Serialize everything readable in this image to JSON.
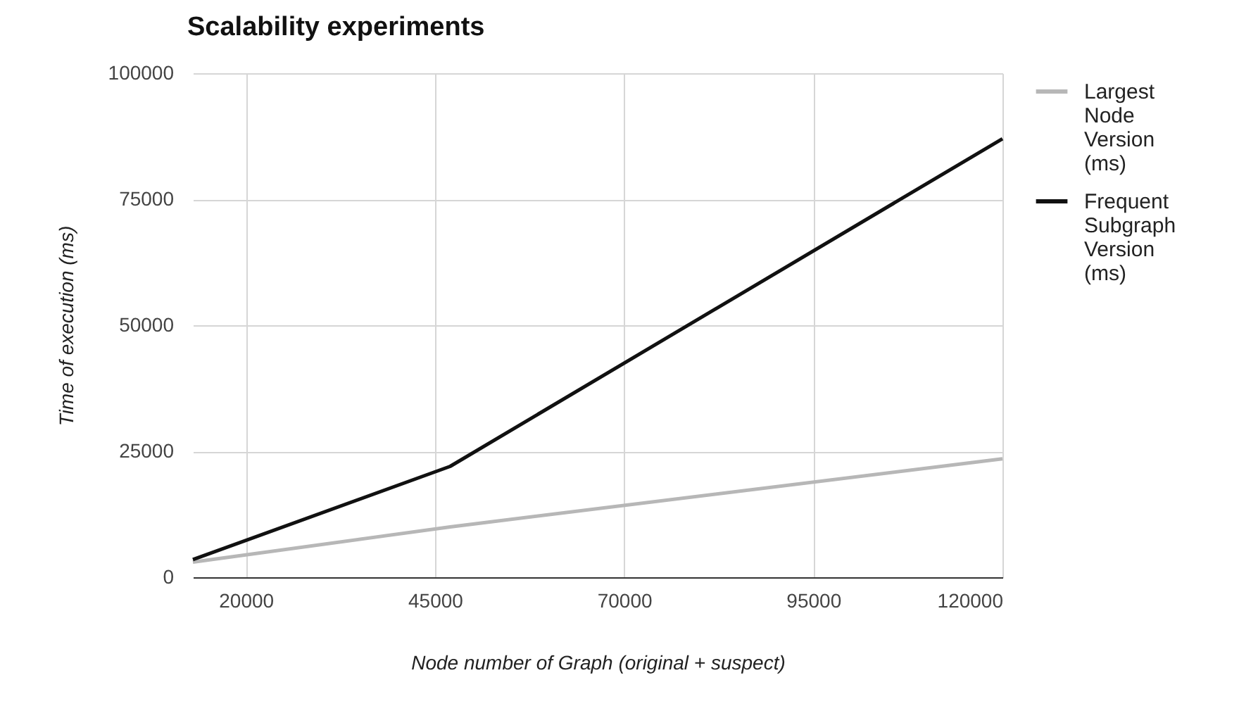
{
  "chart_data": {
    "type": "line",
    "title": "Scalability experiments",
    "xlabel": "Node number of Graph (original + suspect)",
    "ylabel": "Time of execution (ms)",
    "x": [
      13000,
      47000,
      120000
    ],
    "series": [
      {
        "name": "Largest Node Version (ms)",
        "color": "#b7b7b7",
        "values": [
          3000,
          10000,
          23500
        ]
      },
      {
        "name": "Frequent Subgraph Version (ms)",
        "color": "#111111",
        "values": [
          3500,
          22000,
          87000
        ]
      }
    ],
    "xlim": [
      13000,
      120000
    ],
    "xticks": [
      20000,
      45000,
      70000,
      95000,
      120000
    ],
    "ylim": [
      0,
      100000
    ],
    "yticks": [
      0,
      25000,
      50000,
      75000,
      100000
    ],
    "grid": true,
    "legend": "right"
  }
}
